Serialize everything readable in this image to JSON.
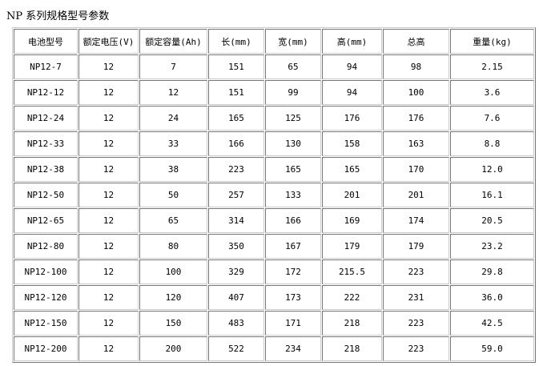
{
  "title": "NP 系列规格型号参数",
  "headers": [
    "电池型号",
    "额定电压(V)",
    "额定容量(Ah)",
    "长(mm)",
    "宽(mm)",
    "高(mm)",
    "总高",
    "重量(kg)"
  ],
  "rows": [
    [
      "NP12-7",
      "12",
      "7",
      "151",
      "65",
      "94",
      "98",
      "2.15"
    ],
    [
      "NP12-12",
      "12",
      "12",
      "151",
      "99",
      "94",
      "100",
      "3.6"
    ],
    [
      "NP12-24",
      "12",
      "24",
      "165",
      "125",
      "176",
      "176",
      "7.6"
    ],
    [
      "NP12-33",
      "12",
      "33",
      "166",
      "130",
      "158",
      "163",
      "8.8"
    ],
    [
      "NP12-38",
      "12",
      "38",
      "223",
      "165",
      "165",
      "170",
      "12.0"
    ],
    [
      "NP12-50",
      "12",
      "50",
      "257",
      "133",
      "201",
      "201",
      "16.1"
    ],
    [
      "NP12-65",
      "12",
      "65",
      "314",
      "166",
      "169",
      "174",
      "20.5"
    ],
    [
      "NP12-80",
      "12",
      "80",
      "350",
      "167",
      "179",
      "179",
      "23.2"
    ],
    [
      "NP12-100",
      "12",
      "100",
      "329",
      "172",
      "215.5",
      "223",
      "29.8"
    ],
    [
      "NP12-120",
      "12",
      "120",
      "407",
      "173",
      "222",
      "231",
      "36.0"
    ],
    [
      "NP12-150",
      "12",
      "150",
      "483",
      "171",
      "218",
      "223",
      "42.5"
    ],
    [
      "NP12-200",
      "12",
      "200",
      "522",
      "234",
      "218",
      "223",
      "59.0"
    ]
  ]
}
